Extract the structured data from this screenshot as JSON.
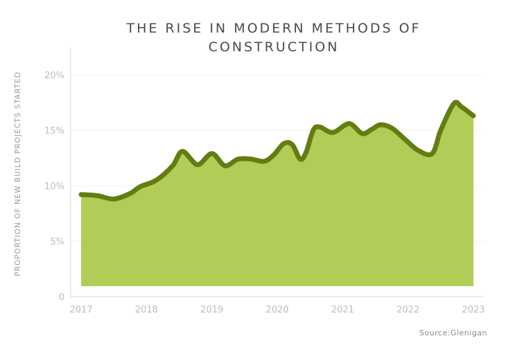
{
  "title_lines": [
    "THE RISE IN MODERN METHODS OF",
    "CONSTRUCTION"
  ],
  "source": "Source:Glenigan",
  "colors": {
    "area_fill": "#b1cd57",
    "line": "#637d10",
    "axis": "#d9d9d9",
    "tick_text": "#bdbdbd",
    "grid": "#f1f1f1"
  },
  "chart_data": {
    "type": "area",
    "title": "THE RISE IN MODERN METHODS OF CONSTRUCTION",
    "xlabel": "",
    "ylabel": "PROPORTION OF NEW BUILD PROJECTS STARTED",
    "xlim": [
      2017,
      2023
    ],
    "ylim": [
      0,
      20
    ],
    "x_ticks": [
      "2017",
      "2018",
      "2019",
      "2020",
      "2021",
      "2022",
      "2023"
    ],
    "y_ticks": [
      "0",
      "5%",
      "10%",
      "15%",
      "20%"
    ],
    "y_tick_values": [
      0,
      5,
      10,
      15,
      20
    ],
    "grid": true,
    "legend": "none",
    "series": [
      {
        "x": [
          2017.0,
          2017.25,
          2017.5,
          2017.75,
          2017.9,
          2018.15,
          2018.4,
          2018.55,
          2018.78,
          2019.0,
          2019.2,
          2019.4,
          2019.6,
          2019.8,
          2019.95,
          2020.1,
          2020.23,
          2020.35,
          2020.44,
          2020.55,
          2020.65,
          2020.85,
          2021.1,
          2021.3,
          2021.45,
          2021.58,
          2021.75,
          2021.95,
          2022.15,
          2022.37,
          2022.5,
          2022.7,
          2022.82,
          2023.0
        ],
        "y": [
          9.2,
          9.1,
          8.8,
          9.3,
          9.9,
          10.5,
          11.8,
          13.1,
          11.9,
          12.9,
          11.8,
          12.4,
          12.4,
          12.2,
          12.8,
          13.8,
          13.7,
          12.4,
          13.0,
          15.0,
          15.3,
          14.8,
          15.6,
          14.7,
          15.1,
          15.5,
          15.2,
          14.2,
          13.2,
          12.9,
          15.0,
          17.4,
          17.1,
          16.3
        ]
      }
    ]
  }
}
